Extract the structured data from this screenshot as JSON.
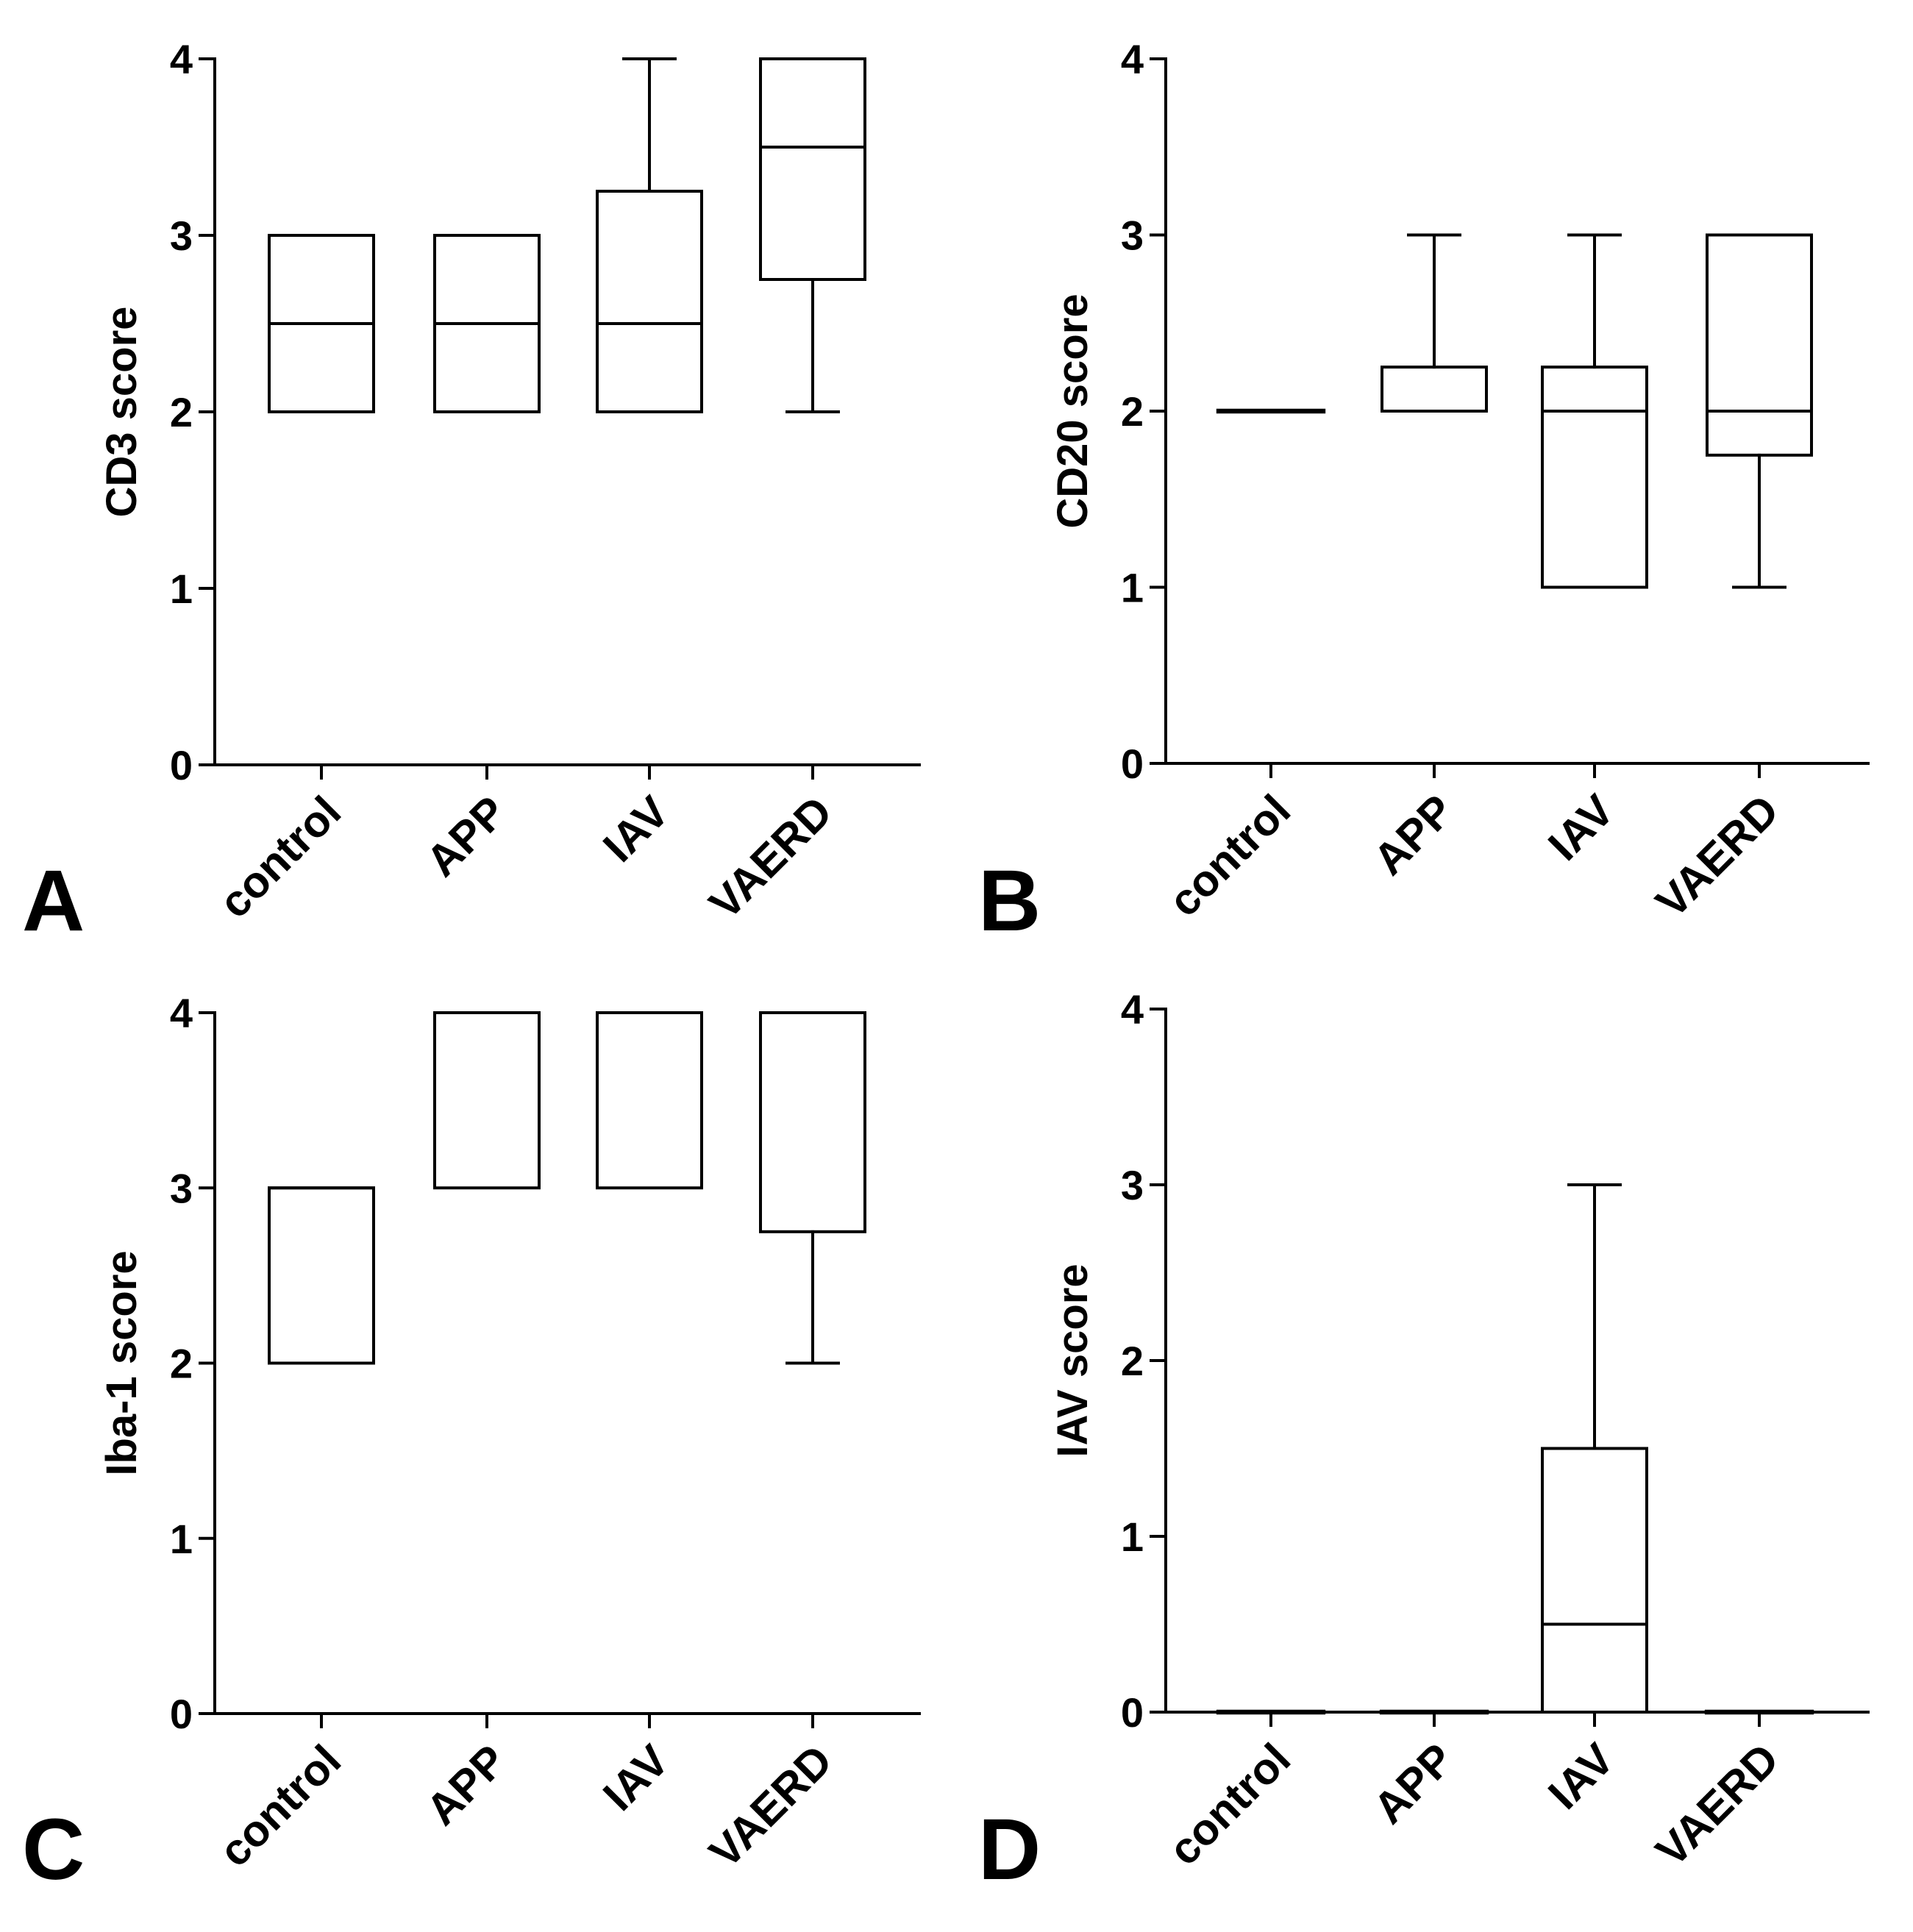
{
  "figure": {
    "panels": [
      "A",
      "B",
      "C",
      "D"
    ]
  },
  "chart_data": [
    {
      "panel": "A",
      "type": "box",
      "ylabel": "CD3 score",
      "xlabel": "",
      "ylim": [
        0,
        4
      ],
      "yticks": [
        "0",
        "1",
        "2",
        "3",
        "4"
      ],
      "categories": [
        "control",
        "APP",
        "IAV",
        "VAERD"
      ],
      "boxes": [
        {
          "min": 2,
          "q1": 2,
          "median": 2.5,
          "q3": 3,
          "max": 3
        },
        {
          "min": 2,
          "q1": 2,
          "median": 2.5,
          "q3": 3,
          "max": 3
        },
        {
          "min": 2,
          "q1": 2,
          "median": 2.5,
          "q3": 3.25,
          "max": 4
        },
        {
          "min": 2,
          "q1": 2.75,
          "median": 3.5,
          "q3": 4,
          "max": 4
        }
      ]
    },
    {
      "panel": "B",
      "type": "box",
      "ylabel": "CD20 score",
      "xlabel": "",
      "ylim": [
        0,
        4
      ],
      "yticks": [
        "0",
        "1",
        "2",
        "3",
        "4"
      ],
      "categories": [
        "control",
        "APP",
        "IAV",
        "VAERD"
      ],
      "boxes": [
        {
          "min": 2,
          "q1": 2,
          "median": 2,
          "q3": 2,
          "max": 2
        },
        {
          "min": 2,
          "q1": 2,
          "median": 2,
          "q3": 2.25,
          "max": 3
        },
        {
          "min": 1,
          "q1": 1,
          "median": 2,
          "q3": 2.25,
          "max": 3
        },
        {
          "min": 1,
          "q1": 1.75,
          "median": 2,
          "q3": 3,
          "max": 3
        }
      ]
    },
    {
      "panel": "C",
      "type": "box",
      "ylabel": "Iba-1 score",
      "xlabel": "",
      "ylim": [
        0,
        4
      ],
      "yticks": [
        "0",
        "1",
        "2",
        "3",
        "4"
      ],
      "categories": [
        "control",
        "APP",
        "IAV",
        "VAERD"
      ],
      "boxes": [
        {
          "min": 2,
          "q1": 2,
          "median": 3,
          "q3": 3,
          "max": 3
        },
        {
          "min": 3,
          "q1": 3,
          "median": 4,
          "q3": 4,
          "max": 4
        },
        {
          "min": 3,
          "q1": 3,
          "median": 4,
          "q3": 4,
          "max": 4
        },
        {
          "min": 2,
          "q1": 2.75,
          "median": 4,
          "q3": 4,
          "max": 4
        }
      ]
    },
    {
      "panel": "D",
      "type": "box",
      "ylabel": "IAV score",
      "xlabel": "",
      "ylim": [
        0,
        4
      ],
      "yticks": [
        "0",
        "1",
        "2",
        "3",
        "4"
      ],
      "categories": [
        "control",
        "APP",
        "IAV",
        "VAERD"
      ],
      "boxes": [
        {
          "min": 0,
          "q1": 0,
          "median": 0,
          "q3": 0,
          "max": 0
        },
        {
          "min": 0,
          "q1": 0,
          "median": 0,
          "q3": 0,
          "max": 0
        },
        {
          "min": 0,
          "q1": 0,
          "median": 0.5,
          "q3": 1.5,
          "max": 3
        },
        {
          "min": 0,
          "q1": 0,
          "median": 0,
          "q3": 0,
          "max": 0
        }
      ]
    }
  ]
}
